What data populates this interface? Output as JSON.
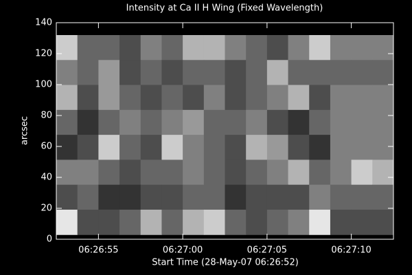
{
  "chart_data": {
    "type": "image",
    "title": "Intensity at Ca II H Wing (Fixed Wavelength)",
    "x_label": "Start Time (28-May-07 06:26:52)",
    "y_label": "arcsec",
    "colormap": "gray",
    "xlim": [
      0.5,
      20.5
    ],
    "ylim": [
      0,
      140
    ],
    "extent_y": [
      3,
      132
    ],
    "xticks": [
      {
        "value": 3,
        "label": "06:26:55"
      },
      {
        "value": 8,
        "label": "06:27:00"
      },
      {
        "value": 13,
        "label": "06:27:05"
      },
      {
        "value": 18,
        "label": "06:27:10"
      }
    ],
    "yticks": [
      0,
      20,
      40,
      60,
      80,
      100,
      120,
      140
    ],
    "z": [
      [
        0.8,
        0.4,
        0.4,
        0.3,
        0.5,
        0.4,
        0.7,
        0.7,
        0.5,
        0.4,
        0.3,
        0.5,
        0.8,
        0.5,
        0.5,
        0.5
      ],
      [
        0.5,
        0.4,
        0.6,
        0.3,
        0.4,
        0.3,
        0.4,
        0.4,
        0.3,
        0.4,
        0.7,
        0.4,
        0.4,
        0.4,
        0.4,
        0.4
      ],
      [
        0.7,
        0.3,
        0.6,
        0.4,
        0.3,
        0.4,
        0.3,
        0.5,
        0.3,
        0.4,
        0.5,
        0.7,
        0.3,
        0.5,
        0.5,
        0.5
      ],
      [
        0.4,
        0.2,
        0.4,
        0.5,
        0.4,
        0.5,
        0.6,
        0.4,
        0.4,
        0.5,
        0.3,
        0.2,
        0.4,
        0.5,
        0.5,
        0.5
      ],
      [
        0.2,
        0.3,
        0.8,
        0.4,
        0.3,
        0.8,
        0.5,
        0.4,
        0.3,
        0.7,
        0.6,
        0.3,
        0.2,
        0.5,
        0.5,
        0.5
      ],
      [
        0.5,
        0.5,
        0.4,
        0.3,
        0.4,
        0.4,
        0.5,
        0.4,
        0.3,
        0.4,
        0.5,
        0.7,
        0.4,
        0.5,
        0.8,
        0.7
      ],
      [
        0.3,
        0.4,
        0.2,
        0.2,
        0.3,
        0.3,
        0.4,
        0.4,
        0.2,
        0.3,
        0.3,
        0.3,
        0.5,
        0.4,
        0.4,
        0.4
      ],
      [
        0.9,
        0.3,
        0.3,
        0.4,
        0.7,
        0.4,
        0.7,
        0.8,
        0.4,
        0.3,
        0.4,
        0.5,
        0.9,
        0.3,
        0.3,
        0.3
      ]
    ]
  }
}
